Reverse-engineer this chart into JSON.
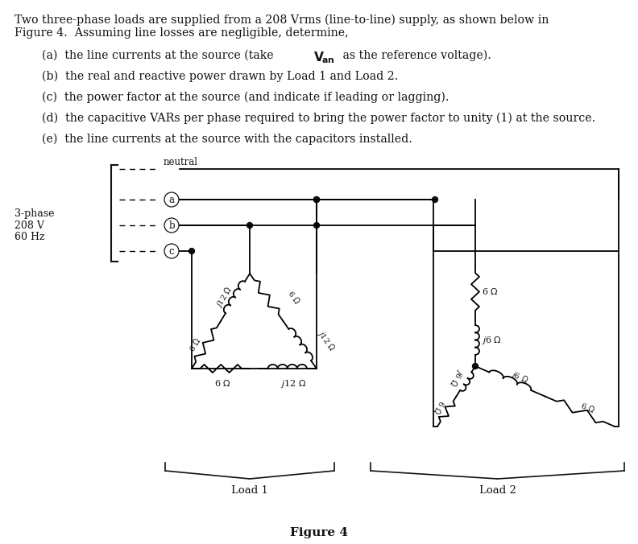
{
  "bg_color": "#ffffff",
  "text_color": "#111111",
  "fig_width": 7.92,
  "fig_height": 6.76,
  "problem_lines": [
    "Two three-phase loads are supplied from a 208 Vrms (line-to-line) supply, as shown below in",
    "Figure 4.  Assuming line losses are negligible, determine,"
  ],
  "items": [
    [
      "(a)",
      " the line currents at the source (take ",
      "bold",
      "V",
      "an",
      " as the reference voltage)."
    ],
    [
      "(b)",
      " the real and reactive power drawn by Load 1 and Load 2."
    ],
    [
      "(c)",
      " the power factor at the source (and indicate if leading or lagging)."
    ],
    [
      "(d)",
      " the capacitive VARs per phase required to bring the power factor to unity (1) at the source."
    ],
    [
      "(e)",
      " the line currents at the source with the capacitors installed."
    ]
  ],
  "source_label": "3-phase\n208 V\n60 Hz",
  "neutral_label": "neutral",
  "load1_label": "Load 1",
  "load2_label": "Load 2",
  "fig_label": "Figure 4"
}
